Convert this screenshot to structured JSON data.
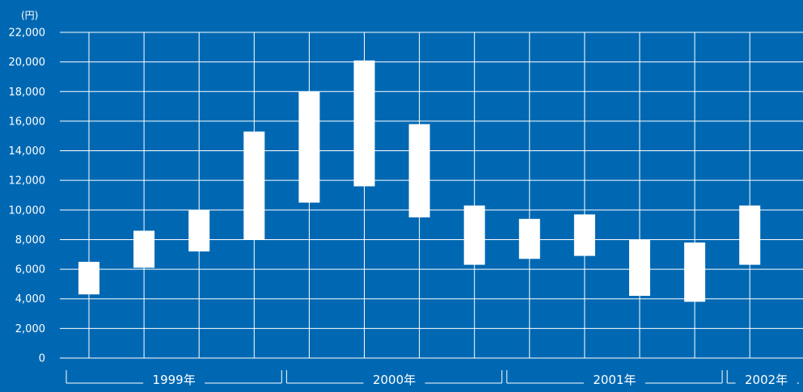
{
  "chart_data": {
    "type": "range-bar",
    "unit": "(円)",
    "ylim": [
      0,
      22000
    ],
    "y_ticks": [
      0,
      2000,
      4000,
      6000,
      8000,
      10000,
      12000,
      14000,
      16000,
      18000,
      20000,
      22000
    ],
    "y_tick_labels": [
      "0",
      "2,000",
      "4,000",
      "6,000",
      "8,000",
      "10,000",
      "12,000",
      "14,000",
      "16,000",
      "18,000",
      "20,000",
      "22,000"
    ],
    "grid": true,
    "years": [
      {
        "label": "1999年",
        "quarters": 4
      },
      {
        "label": "2000年",
        "quarters": 4
      },
      {
        "label": "2001年",
        "quarters": 4
      },
      {
        "label": "2002年",
        "quarters": 1
      }
    ],
    "ranges": [
      {
        "low": 4300,
        "high": 6500
      },
      {
        "low": 6100,
        "high": 8600
      },
      {
        "low": 7200,
        "high": 10000
      },
      {
        "low": 8000,
        "high": 15300
      },
      {
        "low": 10500,
        "high": 18000
      },
      {
        "low": 11600,
        "high": 20100
      },
      {
        "low": 9500,
        "high": 15800
      },
      {
        "low": 6300,
        "high": 10300
      },
      {
        "low": 6700,
        "high": 9400
      },
      {
        "low": 6900,
        "high": 9700
      },
      {
        "low": 4200,
        "high": 8000
      },
      {
        "low": 3800,
        "high": 7800
      },
      {
        "low": 6300,
        "high": 10300
      }
    ],
    "colors": {
      "background": "#0068b3",
      "bar": "#ffffff",
      "grid": "#ffffff"
    }
  }
}
